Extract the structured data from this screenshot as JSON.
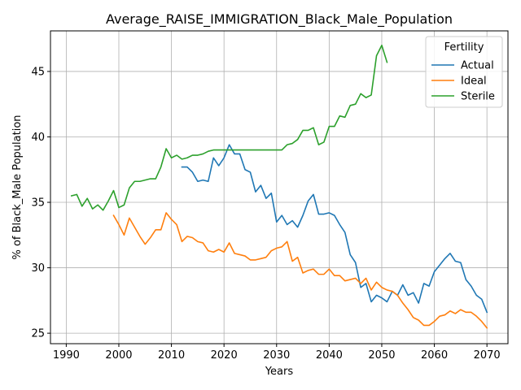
{
  "chart_data": {
    "type": "line",
    "title": "Average_RAISE_IMMIGRATION_Black_Male_Population",
    "xlabel": "Years",
    "ylabel": "% of Black_Male Population",
    "xlim": [
      1987,
      2074
    ],
    "ylim": [
      24.2,
      48.1
    ],
    "xticks": [
      1990,
      2000,
      2010,
      2020,
      2030,
      2040,
      2050,
      2060,
      2070
    ],
    "yticks": [
      25,
      30,
      35,
      40,
      45
    ],
    "grid": true,
    "legend": {
      "title": "Fertility",
      "placement": "top-right"
    },
    "series": [
      {
        "name": "Actual",
        "color": "#1f77b4",
        "points": [
          [
            2012,
            37.7
          ],
          [
            2013,
            37.7
          ],
          [
            2014,
            37.3
          ],
          [
            2015,
            36.6
          ],
          [
            2016,
            36.7
          ],
          [
            2017,
            36.6
          ],
          [
            2018,
            38.4
          ],
          [
            2019,
            37.8
          ],
          [
            2020,
            38.4
          ],
          [
            2021,
            39.4
          ],
          [
            2022,
            38.7
          ],
          [
            2023,
            38.7
          ],
          [
            2024,
            37.5
          ],
          [
            2025,
            37.3
          ],
          [
            2026,
            35.8
          ],
          [
            2027,
            36.3
          ],
          [
            2028,
            35.3
          ],
          [
            2029,
            35.7
          ],
          [
            2030,
            33.5
          ],
          [
            2031,
            34.0
          ],
          [
            2032,
            33.3
          ],
          [
            2033,
            33.6
          ],
          [
            2034,
            33.1
          ],
          [
            2035,
            34.0
          ],
          [
            2036,
            35.1
          ],
          [
            2037,
            35.6
          ],
          [
            2038,
            34.1
          ],
          [
            2039,
            34.1
          ],
          [
            2040,
            34.2
          ],
          [
            2041,
            34.0
          ],
          [
            2042,
            33.3
          ],
          [
            2043,
            32.7
          ],
          [
            2044,
            31.0
          ],
          [
            2045,
            30.4
          ],
          [
            2046,
            28.5
          ],
          [
            2047,
            28.8
          ],
          [
            2048,
            27.4
          ],
          [
            2049,
            27.9
          ],
          [
            2050,
            27.7
          ],
          [
            2051,
            27.4
          ],
          [
            2052,
            28.2
          ],
          [
            2053,
            27.9
          ],
          [
            2054,
            28.7
          ],
          [
            2055,
            27.9
          ],
          [
            2056,
            28.1
          ],
          [
            2057,
            27.3
          ],
          [
            2058,
            28.8
          ],
          [
            2059,
            28.6
          ],
          [
            2060,
            29.7
          ],
          [
            2061,
            30.2
          ],
          [
            2062,
            30.7
          ],
          [
            2063,
            31.1
          ],
          [
            2064,
            30.5
          ],
          [
            2065,
            30.4
          ],
          [
            2066,
            29.1
          ],
          [
            2067,
            28.6
          ],
          [
            2068,
            27.9
          ],
          [
            2069,
            27.6
          ],
          [
            2070,
            26.6
          ]
        ]
      },
      {
        "name": "Ideal",
        "color": "#ff7f0e",
        "points": [
          [
            1999,
            34.0
          ],
          [
            2000,
            33.3
          ],
          [
            2001,
            32.5
          ],
          [
            2002,
            33.8
          ],
          [
            2003,
            33.1
          ],
          [
            2004,
            32.4
          ],
          [
            2005,
            31.8
          ],
          [
            2006,
            32.3
          ],
          [
            2007,
            32.9
          ],
          [
            2008,
            32.9
          ],
          [
            2009,
            34.2
          ],
          [
            2010,
            33.7
          ],
          [
            2011,
            33.3
          ],
          [
            2012,
            32.0
          ],
          [
            2013,
            32.4
          ],
          [
            2014,
            32.3
          ],
          [
            2015,
            32.0
          ],
          [
            2016,
            31.9
          ],
          [
            2017,
            31.3
          ],
          [
            2018,
            31.2
          ],
          [
            2019,
            31.4
          ],
          [
            2020,
            31.2
          ],
          [
            2021,
            31.9
          ],
          [
            2022,
            31.1
          ],
          [
            2023,
            31.0
          ],
          [
            2024,
            30.9
          ],
          [
            2025,
            30.6
          ],
          [
            2026,
            30.6
          ],
          [
            2027,
            30.7
          ],
          [
            2028,
            30.8
          ],
          [
            2029,
            31.3
          ],
          [
            2030,
            31.5
          ],
          [
            2031,
            31.6
          ],
          [
            2032,
            32.0
          ],
          [
            2033,
            30.5
          ],
          [
            2034,
            30.8
          ],
          [
            2035,
            29.6
          ],
          [
            2036,
            29.8
          ],
          [
            2037,
            29.9
          ],
          [
            2038,
            29.5
          ],
          [
            2039,
            29.5
          ],
          [
            2040,
            29.9
          ],
          [
            2041,
            29.4
          ],
          [
            2042,
            29.4
          ],
          [
            2043,
            29.0
          ],
          [
            2044,
            29.1
          ],
          [
            2045,
            29.2
          ],
          [
            2046,
            28.8
          ],
          [
            2047,
            29.2
          ],
          [
            2048,
            28.3
          ],
          [
            2049,
            28.9
          ],
          [
            2050,
            28.5
          ],
          [
            2051,
            28.3
          ],
          [
            2052,
            28.2
          ],
          [
            2053,
            27.9
          ],
          [
            2054,
            27.3
          ],
          [
            2055,
            26.8
          ],
          [
            2056,
            26.2
          ],
          [
            2057,
            26.0
          ],
          [
            2058,
            25.6
          ],
          [
            2059,
            25.6
          ],
          [
            2060,
            25.9
          ],
          [
            2061,
            26.3
          ],
          [
            2062,
            26.4
          ],
          [
            2063,
            26.7
          ],
          [
            2064,
            26.5
          ],
          [
            2065,
            26.8
          ],
          [
            2066,
            26.6
          ],
          [
            2067,
            26.6
          ],
          [
            2068,
            26.3
          ],
          [
            2069,
            25.9
          ],
          [
            2070,
            25.4
          ]
        ]
      },
      {
        "name": "Sterile",
        "color": "#2ca02c",
        "points": [
          [
            1991,
            35.5
          ],
          [
            1992,
            35.6
          ],
          [
            1993,
            34.7
          ],
          [
            1994,
            35.3
          ],
          [
            1995,
            34.5
          ],
          [
            1996,
            34.8
          ],
          [
            1997,
            34.4
          ],
          [
            1998,
            35.1
          ],
          [
            1999,
            35.9
          ],
          [
            2000,
            34.6
          ],
          [
            2001,
            34.8
          ],
          [
            2002,
            36.1
          ],
          [
            2003,
            36.6
          ],
          [
            2004,
            36.6
          ],
          [
            2005,
            36.7
          ],
          [
            2006,
            36.8
          ],
          [
            2007,
            36.8
          ],
          [
            2008,
            37.7
          ],
          [
            2009,
            39.1
          ],
          [
            2010,
            38.4
          ],
          [
            2011,
            38.6
          ],
          [
            2012,
            38.3
          ],
          [
            2013,
            38.4
          ],
          [
            2014,
            38.6
          ],
          [
            2015,
            38.6
          ],
          [
            2016,
            38.7
          ],
          [
            2017,
            38.9
          ],
          [
            2018,
            39.0
          ],
          [
            2019,
            39.0
          ],
          [
            2020,
            39.0
          ],
          [
            2021,
            39.0
          ],
          [
            2022,
            39.0
          ],
          [
            2023,
            39.0
          ],
          [
            2024,
            39.0
          ],
          [
            2025,
            39.0
          ],
          [
            2026,
            39.0
          ],
          [
            2027,
            39.0
          ],
          [
            2028,
            39.0
          ],
          [
            2029,
            39.0
          ],
          [
            2030,
            39.0
          ],
          [
            2031,
            39.0
          ],
          [
            2032,
            39.4
          ],
          [
            2033,
            39.5
          ],
          [
            2034,
            39.8
          ],
          [
            2035,
            40.5
          ],
          [
            2036,
            40.5
          ],
          [
            2037,
            40.7
          ],
          [
            2038,
            39.4
          ],
          [
            2039,
            39.6
          ],
          [
            2040,
            40.8
          ],
          [
            2041,
            40.8
          ],
          [
            2042,
            41.6
          ],
          [
            2043,
            41.5
          ],
          [
            2044,
            42.4
          ],
          [
            2045,
            42.5
          ],
          [
            2046,
            43.3
          ],
          [
            2047,
            43.0
          ],
          [
            2048,
            43.2
          ],
          [
            2049,
            46.2
          ],
          [
            2050,
            47.0
          ],
          [
            2051,
            45.7
          ]
        ]
      }
    ]
  }
}
